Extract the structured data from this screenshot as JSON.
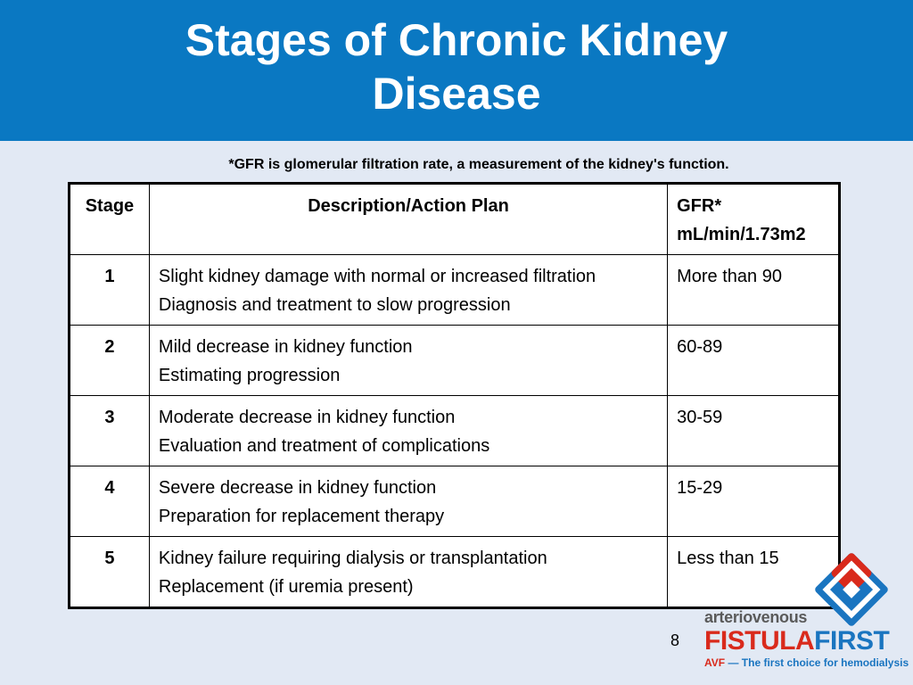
{
  "slide": {
    "title": "Stages of Chronic Kidney Disease",
    "note": "*GFR is glomerular filtration rate, a measurement of the kidney's function.",
    "page_number": "8"
  },
  "table": {
    "headers": {
      "stage": "Stage",
      "description": "Description/Action Plan",
      "gfr_line1": "GFR*",
      "gfr_line2": "mL/min/1.73m2"
    },
    "rows": [
      {
        "stage": "1",
        "line1": "Slight kidney damage with normal or increased filtration",
        "line2": "Diagnosis and treatment to slow progression",
        "gfr": "More than 90"
      },
      {
        "stage": "2",
        "line1": "Mild decrease in kidney function",
        "line2": "Estimating progression",
        "gfr": "60-89"
      },
      {
        "stage": "3",
        "line1": "Moderate decrease in kidney function",
        "line2": "Evaluation and treatment of complications",
        "gfr": "30-59"
      },
      {
        "stage": "4",
        "line1": "Severe decrease in kidney function",
        "line2": "Preparation for replacement therapy",
        "gfr": "15-29"
      },
      {
        "stage": "5",
        "line1": "Kidney failure requiring dialysis or transplantation",
        "line2": "Replacement (if uremia present)",
        "gfr": "Less than 15"
      }
    ]
  },
  "logo": {
    "small_text": "arteriovenous",
    "word1": "FISTULA",
    "word2": "FIRST",
    "tag_abbrev": "AVF",
    "tagline": " — The first choice for hemodialysis",
    "icon": "fistula-first-logo-icon"
  },
  "colors": {
    "header_bg": "#0a78c2",
    "page_bg": "#e2e9f4",
    "logo_red": "#d92a1c",
    "logo_blue": "#1a75c0"
  }
}
